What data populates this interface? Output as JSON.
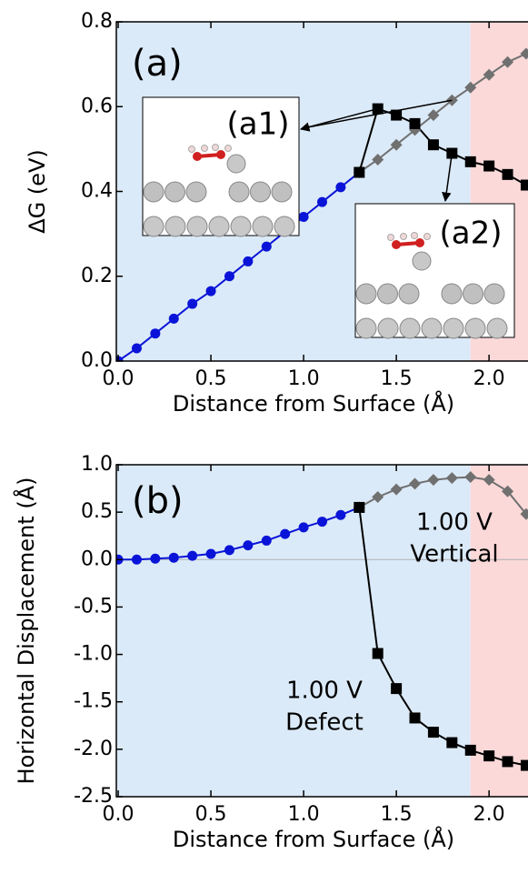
{
  "chart_data": [
    {
      "type": "line",
      "panel_label": "(a)",
      "xlabel": "Distance from Surface (Å)",
      "ylabel": "ΔG (eV)",
      "xlim": [
        -0.01,
        2.21
      ],
      "ylim": [
        0,
        0.8
      ],
      "xticks": [
        {
          "value": 0,
          "label": "0.0"
        },
        0.5,
        {
          "value": 1,
          "label": "1.0"
        },
        1.5,
        {
          "value": 2,
          "label": "2.0"
        }
      ],
      "yticks": [
        {
          "value": 0,
          "label": "0.0"
        },
        0.2,
        0.4,
        0.6,
        0.8
      ],
      "split": 1.9,
      "region_colors": [
        "#dbeaf8",
        "#fbd9d9"
      ],
      "series": [
        {
          "color": "#0a14d8",
          "marker": "circle",
          "x": [
            0,
            0.1,
            0.2,
            0.3,
            0.4,
            0.5,
            0.6,
            0.7,
            0.8,
            0.9,
            1.0,
            1.1,
            1.2,
            1.3
          ],
          "values": [
            0,
            0.03,
            0.065,
            0.1,
            0.135,
            0.165,
            0.2,
            0.235,
            0.27,
            0.305,
            0.34,
            0.375,
            0.41,
            0.445
          ]
        },
        {
          "color": "#707070",
          "marker": "diamond",
          "x": [
            1.3,
            1.4,
            1.5,
            1.6,
            1.7,
            1.8,
            1.9,
            2.0,
            2.1,
            2.2
          ],
          "values": [
            0.445,
            0.475,
            0.51,
            0.545,
            0.58,
            0.615,
            0.645,
            0.675,
            0.705,
            0.725
          ]
        },
        {
          "color": "#000000",
          "marker": "square",
          "x": [
            1.3,
            1.4,
            1.5,
            1.6,
            1.7,
            1.8,
            1.9,
            2.0,
            2.1,
            2.2
          ],
          "values": [
            0.445,
            0.595,
            0.58,
            0.56,
            0.51,
            0.49,
            0.47,
            0.46,
            0.44,
            0.415
          ]
        }
      ],
      "insets": [
        {
          "label": "(a1)"
        },
        {
          "label": "(a2)"
        }
      ]
    },
    {
      "type": "line",
      "panel_label": "(b)",
      "xlabel": "Distance from Surface (Å)",
      "ylabel": "Horizontal Displacement (Å)",
      "xlim": [
        -0.01,
        2.21
      ],
      "ylim": [
        -2.5,
        1.0
      ],
      "xticks": [
        {
          "value": 0,
          "label": "0.0"
        },
        0.5,
        {
          "value": 1,
          "label": "1.0"
        },
        1.5,
        {
          "value": 2,
          "label": "2.0"
        }
      ],
      "yticks": [
        {
          "value": 1,
          "label": "1.0"
        },
        0.5,
        {
          "value": 0,
          "label": "0.0"
        },
        -0.5,
        {
          "value": -1,
          "label": "-1.0"
        },
        -1.5,
        {
          "value": -2,
          "label": "-2.0"
        },
        -2.5
      ],
      "split": 1.9,
      "region_colors": [
        "#dbeaf8",
        "#fbd9d9"
      ],
      "zero_line": true,
      "series": [
        {
          "color": "#0a14d8",
          "marker": "circle",
          "x": [
            0,
            0.1,
            0.2,
            0.3,
            0.4,
            0.5,
            0.6,
            0.7,
            0.8,
            0.9,
            1.0,
            1.1,
            1.2,
            1.3
          ],
          "values": [
            0,
            0.0,
            0.01,
            0.02,
            0.04,
            0.06,
            0.1,
            0.15,
            0.2,
            0.27,
            0.34,
            0.4,
            0.47,
            0.55
          ]
        },
        {
          "color": "#707070",
          "marker": "diamond",
          "x": [
            1.3,
            1.4,
            1.5,
            1.6,
            1.7,
            1.8,
            1.9,
            2.0,
            2.1,
            2.2
          ],
          "values": [
            0.55,
            0.66,
            0.74,
            0.8,
            0.84,
            0.86,
            0.87,
            0.84,
            0.72,
            0.48
          ]
        },
        {
          "color": "#000000",
          "marker": "square",
          "x": [
            1.3,
            1.4,
            1.5,
            1.6,
            1.7,
            1.8,
            1.9,
            2.0,
            2.1,
            2.2
          ],
          "values": [
            0.55,
            -0.99,
            -1.36,
            -1.67,
            -1.82,
            -1.93,
            -2.01,
            -2.07,
            -2.13,
            -2.17
          ]
        }
      ],
      "annotations": [
        "1.00 V",
        "Vertical",
        "1.00 V",
        "Defect"
      ]
    }
  ]
}
